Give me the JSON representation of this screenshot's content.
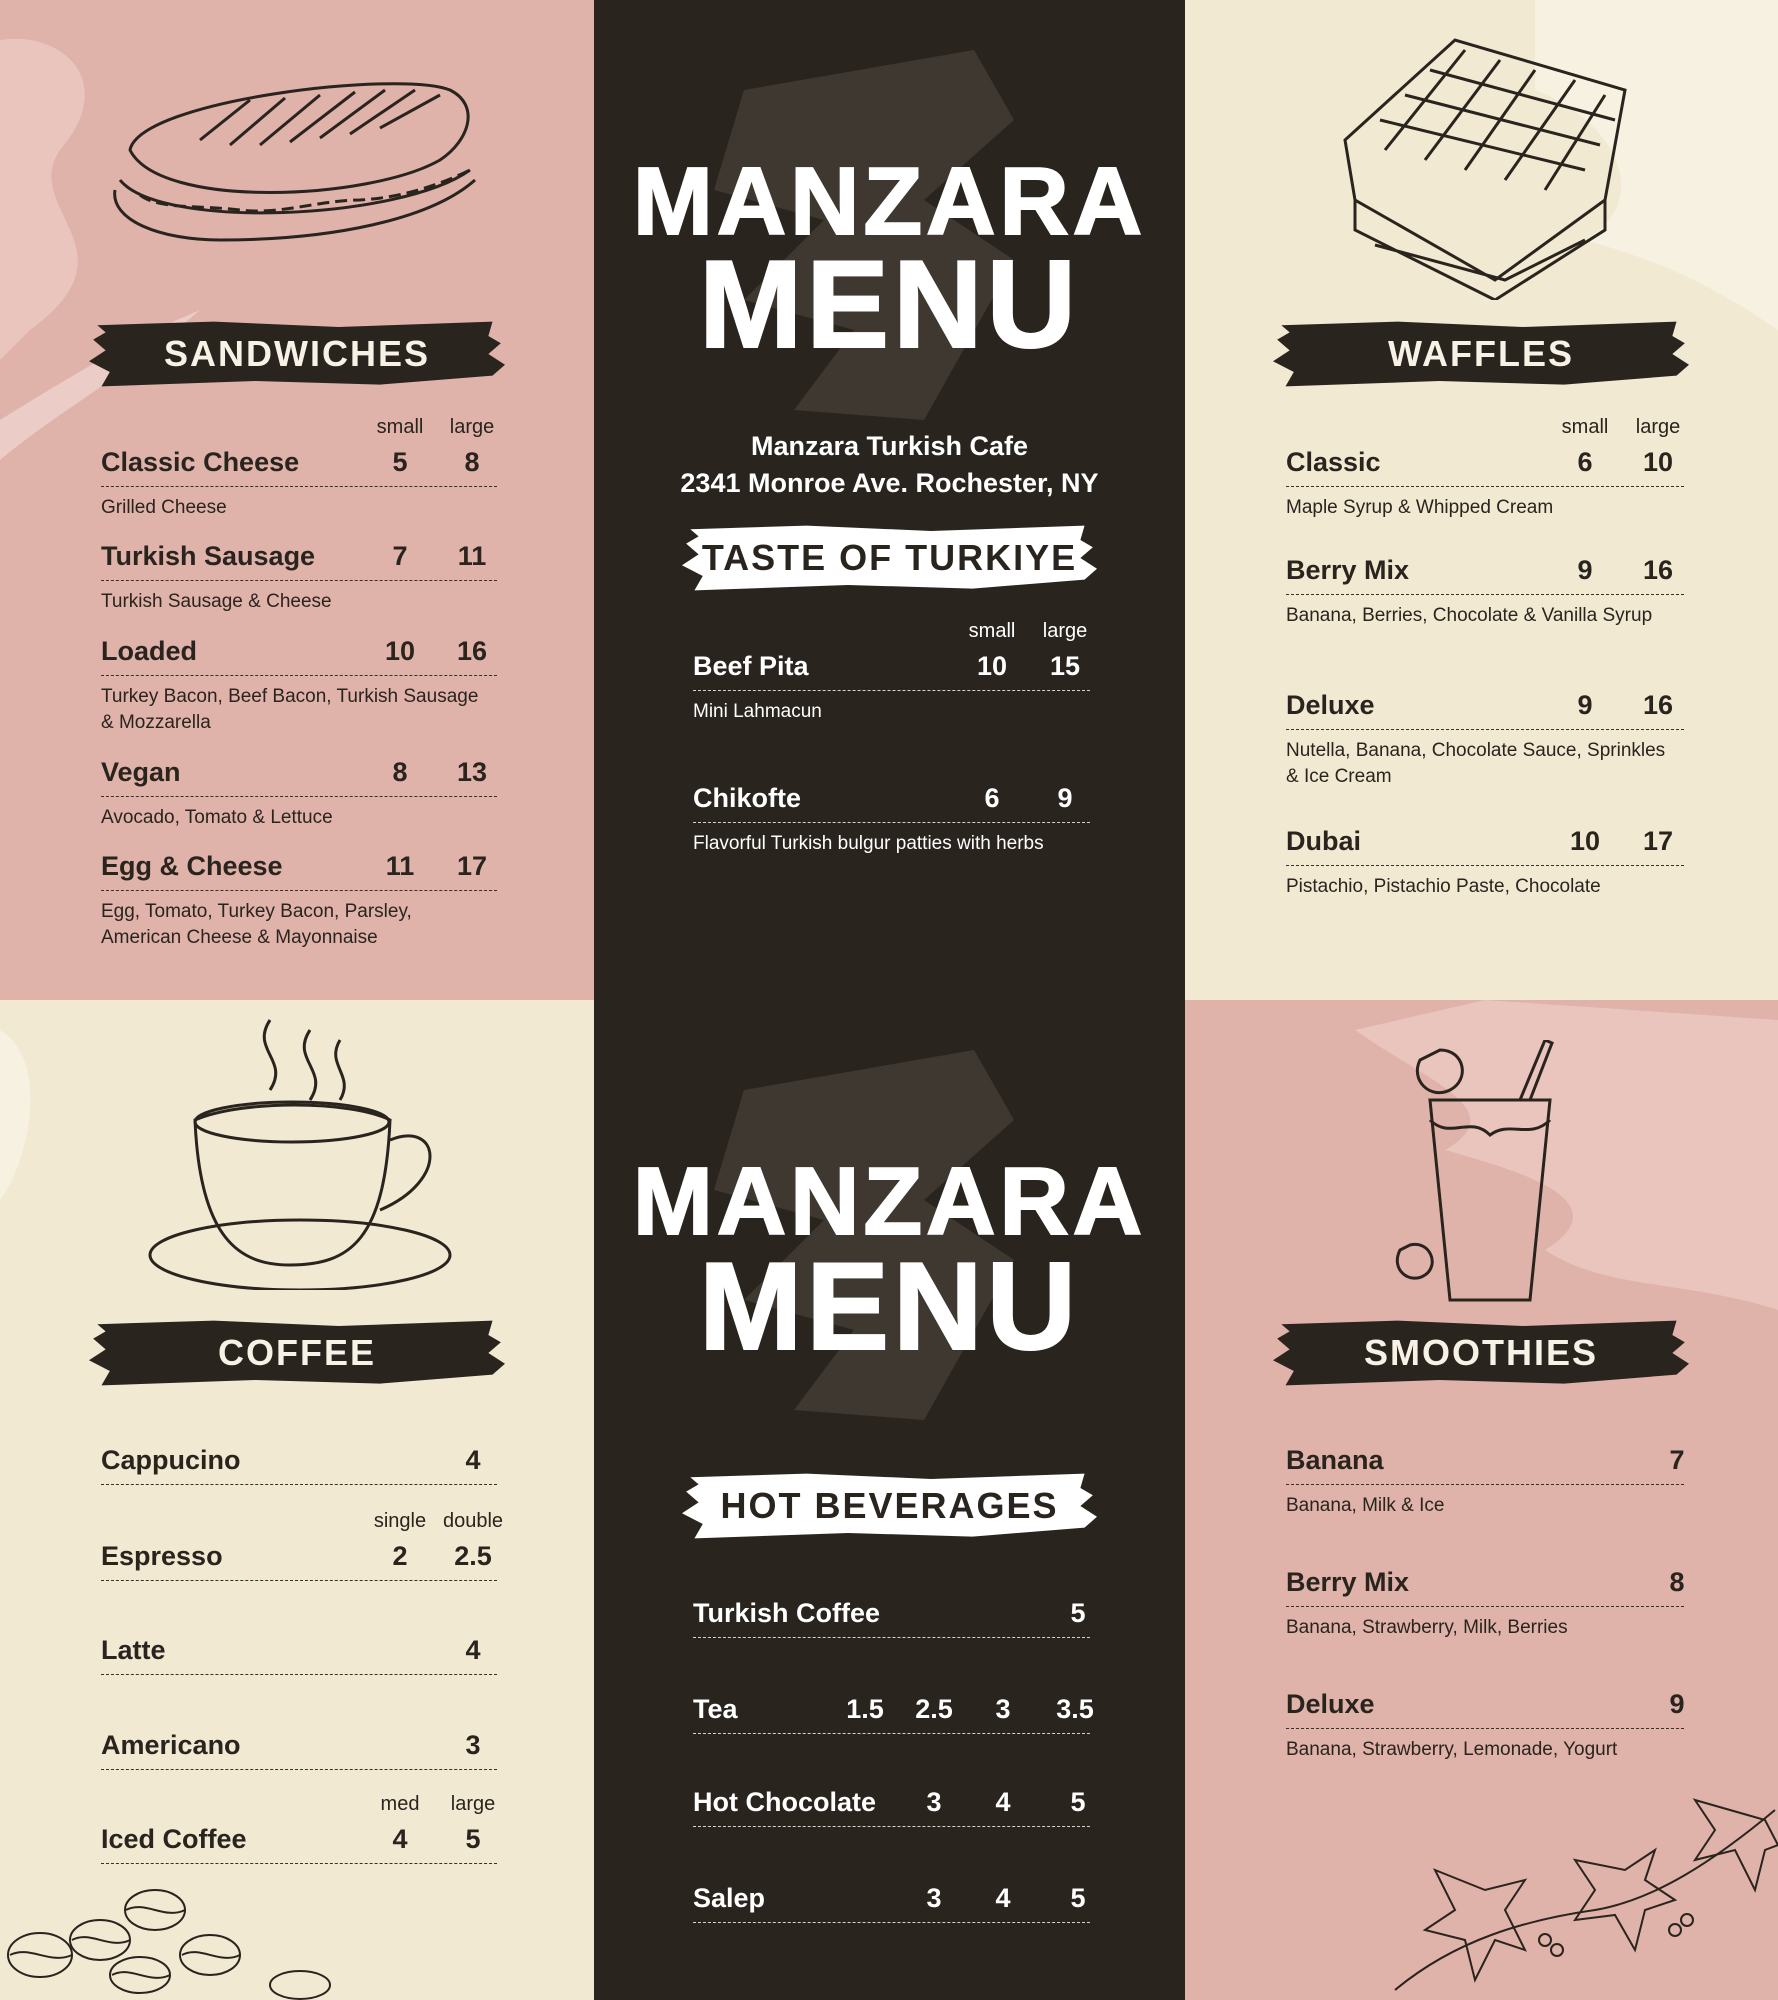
{
  "colors": {
    "pink": "#dfb2aa",
    "cream": "#f2e9d3",
    "dark": "#2a241e",
    "text_dark": "#2a241e",
    "text_light": "#ffffff"
  },
  "header": {
    "title_line1": "MANZARA",
    "title_line2": "MENU",
    "cafe_name": "Manzara Turkish Cafe",
    "address": "2341 Monroe Ave. Rochester, NY"
  },
  "footer_title": {
    "line1": "MANZARA",
    "line2": "MENU"
  },
  "sections": {
    "sandwiches": {
      "title": "SANDWICHES",
      "items": [
        {
          "name": "Classic Cheese",
          "size_labels": [
            "small",
            "large"
          ],
          "prices": [
            "5",
            "8"
          ],
          "desc": "Grilled Cheese"
        },
        {
          "name": "Turkish Sausage",
          "prices": [
            "7",
            "11"
          ],
          "desc": "Turkish Sausage & Cheese"
        },
        {
          "name": "Loaded",
          "prices": [
            "10",
            "16"
          ],
          "desc": "Turkey Bacon, Beef Bacon, Turkish Sausage & Mozzarella"
        },
        {
          "name": "Vegan",
          "prices": [
            "8",
            "13"
          ],
          "desc": "Avocado, Tomato & Lettuce"
        },
        {
          "name": "Egg & Cheese",
          "prices": [
            "11",
            "17"
          ],
          "desc": "Egg, Tomato, Turkey Bacon, Parsley, American Cheese & Mayonnaise"
        }
      ]
    },
    "taste_of_turkiye": {
      "title": "TASTE OF TURKIYE",
      "items": [
        {
          "name": "Beef Pita",
          "size_labels": [
            "small",
            "large"
          ],
          "prices": [
            "10",
            "15"
          ],
          "desc": "Mini Lahmacun"
        },
        {
          "name": "Chikofte",
          "prices": [
            "6",
            "9"
          ],
          "desc": "Flavorful Turkish bulgur patties with herbs"
        }
      ]
    },
    "waffles": {
      "title": "WAFFLES",
      "items": [
        {
          "name": "Classic",
          "size_labels": [
            "small",
            "large"
          ],
          "prices": [
            "6",
            "10"
          ],
          "desc": "Maple Syrup & Whipped Cream"
        },
        {
          "name": "Berry Mix",
          "prices": [
            "9",
            "16"
          ],
          "desc": "Banana, Berries, Chocolate & Vanilla Syrup"
        },
        {
          "name": "Deluxe",
          "prices": [
            "9",
            "16"
          ],
          "desc": "Nutella, Banana, Chocolate Sauce, Sprinkles & Ice Cream"
        },
        {
          "name": "Dubai",
          "prices": [
            "10",
            "17"
          ],
          "desc": "Pistachio, Pistachio Paste, Chocolate"
        }
      ]
    },
    "coffee": {
      "title": "COFFEE",
      "items": [
        {
          "name": "Cappucino",
          "prices": [
            "4"
          ]
        },
        {
          "name": "Espresso",
          "size_labels": [
            "single",
            "double"
          ],
          "prices": [
            "2",
            "2.5"
          ]
        },
        {
          "name": "Latte",
          "prices": [
            "4"
          ]
        },
        {
          "name": "Americano",
          "prices": [
            "3"
          ]
        },
        {
          "name": "Iced Coffee",
          "size_labels": [
            "med",
            "large"
          ],
          "prices": [
            "4",
            "5"
          ]
        }
      ]
    },
    "hot_beverages": {
      "title": "HOT BEVERAGES",
      "items": [
        {
          "name": "Turkish Coffee",
          "prices": [
            "5"
          ]
        },
        {
          "name": "Tea",
          "prices": [
            "1.5",
            "2.5",
            "3",
            "3.5"
          ]
        },
        {
          "name": "Hot Chocolate",
          "prices": [
            "3",
            "4",
            "5"
          ]
        },
        {
          "name": "Salep",
          "prices": [
            "3",
            "4",
            "5"
          ]
        }
      ]
    },
    "smoothies": {
      "title": "SMOOTHIES",
      "items": [
        {
          "name": "Banana",
          "prices": [
            "7"
          ],
          "desc": "Banana, Milk & Ice"
        },
        {
          "name": "Berry Mix",
          "prices": [
            "8"
          ],
          "desc": "Banana, Strawberry, Milk, Berries"
        },
        {
          "name": "Deluxe",
          "prices": [
            "9"
          ],
          "desc": "Banana, Strawberry, Lemonade, Yogurt"
        }
      ]
    }
  },
  "illustrations": [
    "sandwich-icon",
    "waffle-icon",
    "coffee-cup-icon",
    "smoothie-glass-icon",
    "coffee-beans-icon",
    "holly-icon"
  ]
}
